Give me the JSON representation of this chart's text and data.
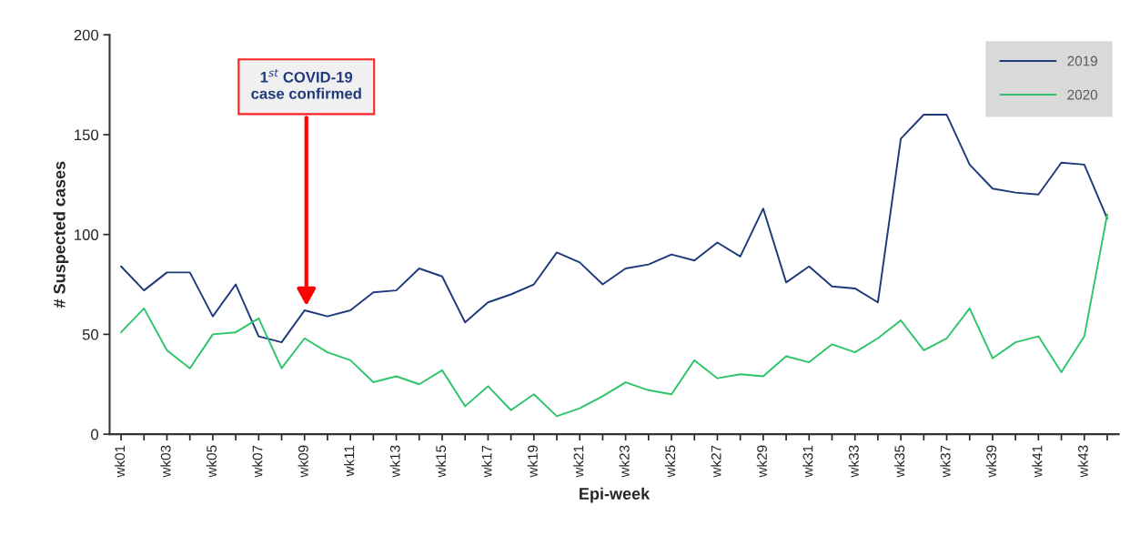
{
  "chart_data": {
    "type": "line",
    "xlabel": "Epi-week",
    "ylabel": "# Suspected cases",
    "categories": [
      "wk01",
      null,
      "wk03",
      null,
      "wk05",
      null,
      "wk07",
      null,
      "wk09",
      null,
      "wk11",
      null,
      "wk13",
      null,
      "wk15",
      null,
      "wk17",
      null,
      "wk19",
      null,
      "wk21",
      null,
      "wk23",
      null,
      "wk25",
      null,
      "wk27",
      null,
      "wk29",
      null,
      "wk31",
      null,
      "wk33",
      null,
      "wk35",
      null,
      "wk37",
      null,
      "wk39",
      null,
      "wk41",
      null,
      "wk43",
      null
    ],
    "series": [
      {
        "name": "2019",
        "color": "#1f3a7a",
        "values": [
          84,
          72,
          81,
          81,
          59,
          75,
          49,
          46,
          62,
          59,
          62,
          71,
          72,
          83,
          79,
          56,
          66,
          70,
          75,
          91,
          86,
          75,
          83,
          85,
          90,
          87,
          96,
          89,
          113,
          76,
          84,
          74,
          73,
          66,
          148,
          160,
          160,
          135,
          123,
          121,
          120,
          136,
          135,
          108
        ]
      },
      {
        "name": "2020",
        "color": "#2ec46a",
        "values": [
          51,
          63,
          42,
          33,
          50,
          51,
          58,
          33,
          48,
          41,
          37,
          26,
          29,
          25,
          32,
          14,
          24,
          12,
          20,
          9,
          13,
          19,
          26,
          22,
          20,
          37,
          28,
          30,
          29,
          39,
          36,
          45,
          41,
          48,
          57,
          42,
          48,
          63,
          38,
          46,
          49,
          31,
          49,
          110
        ]
      }
    ],
    "ylim": [
      0,
      200
    ],
    "yticks": [
      0,
      50,
      100,
      150,
      200
    ],
    "grid": false,
    "legend": "top right",
    "marker": "none",
    "line_style": "solid",
    "annotations": [
      "1$^{st}$ COVID-19\ncase confirmed"
    ]
  }
}
